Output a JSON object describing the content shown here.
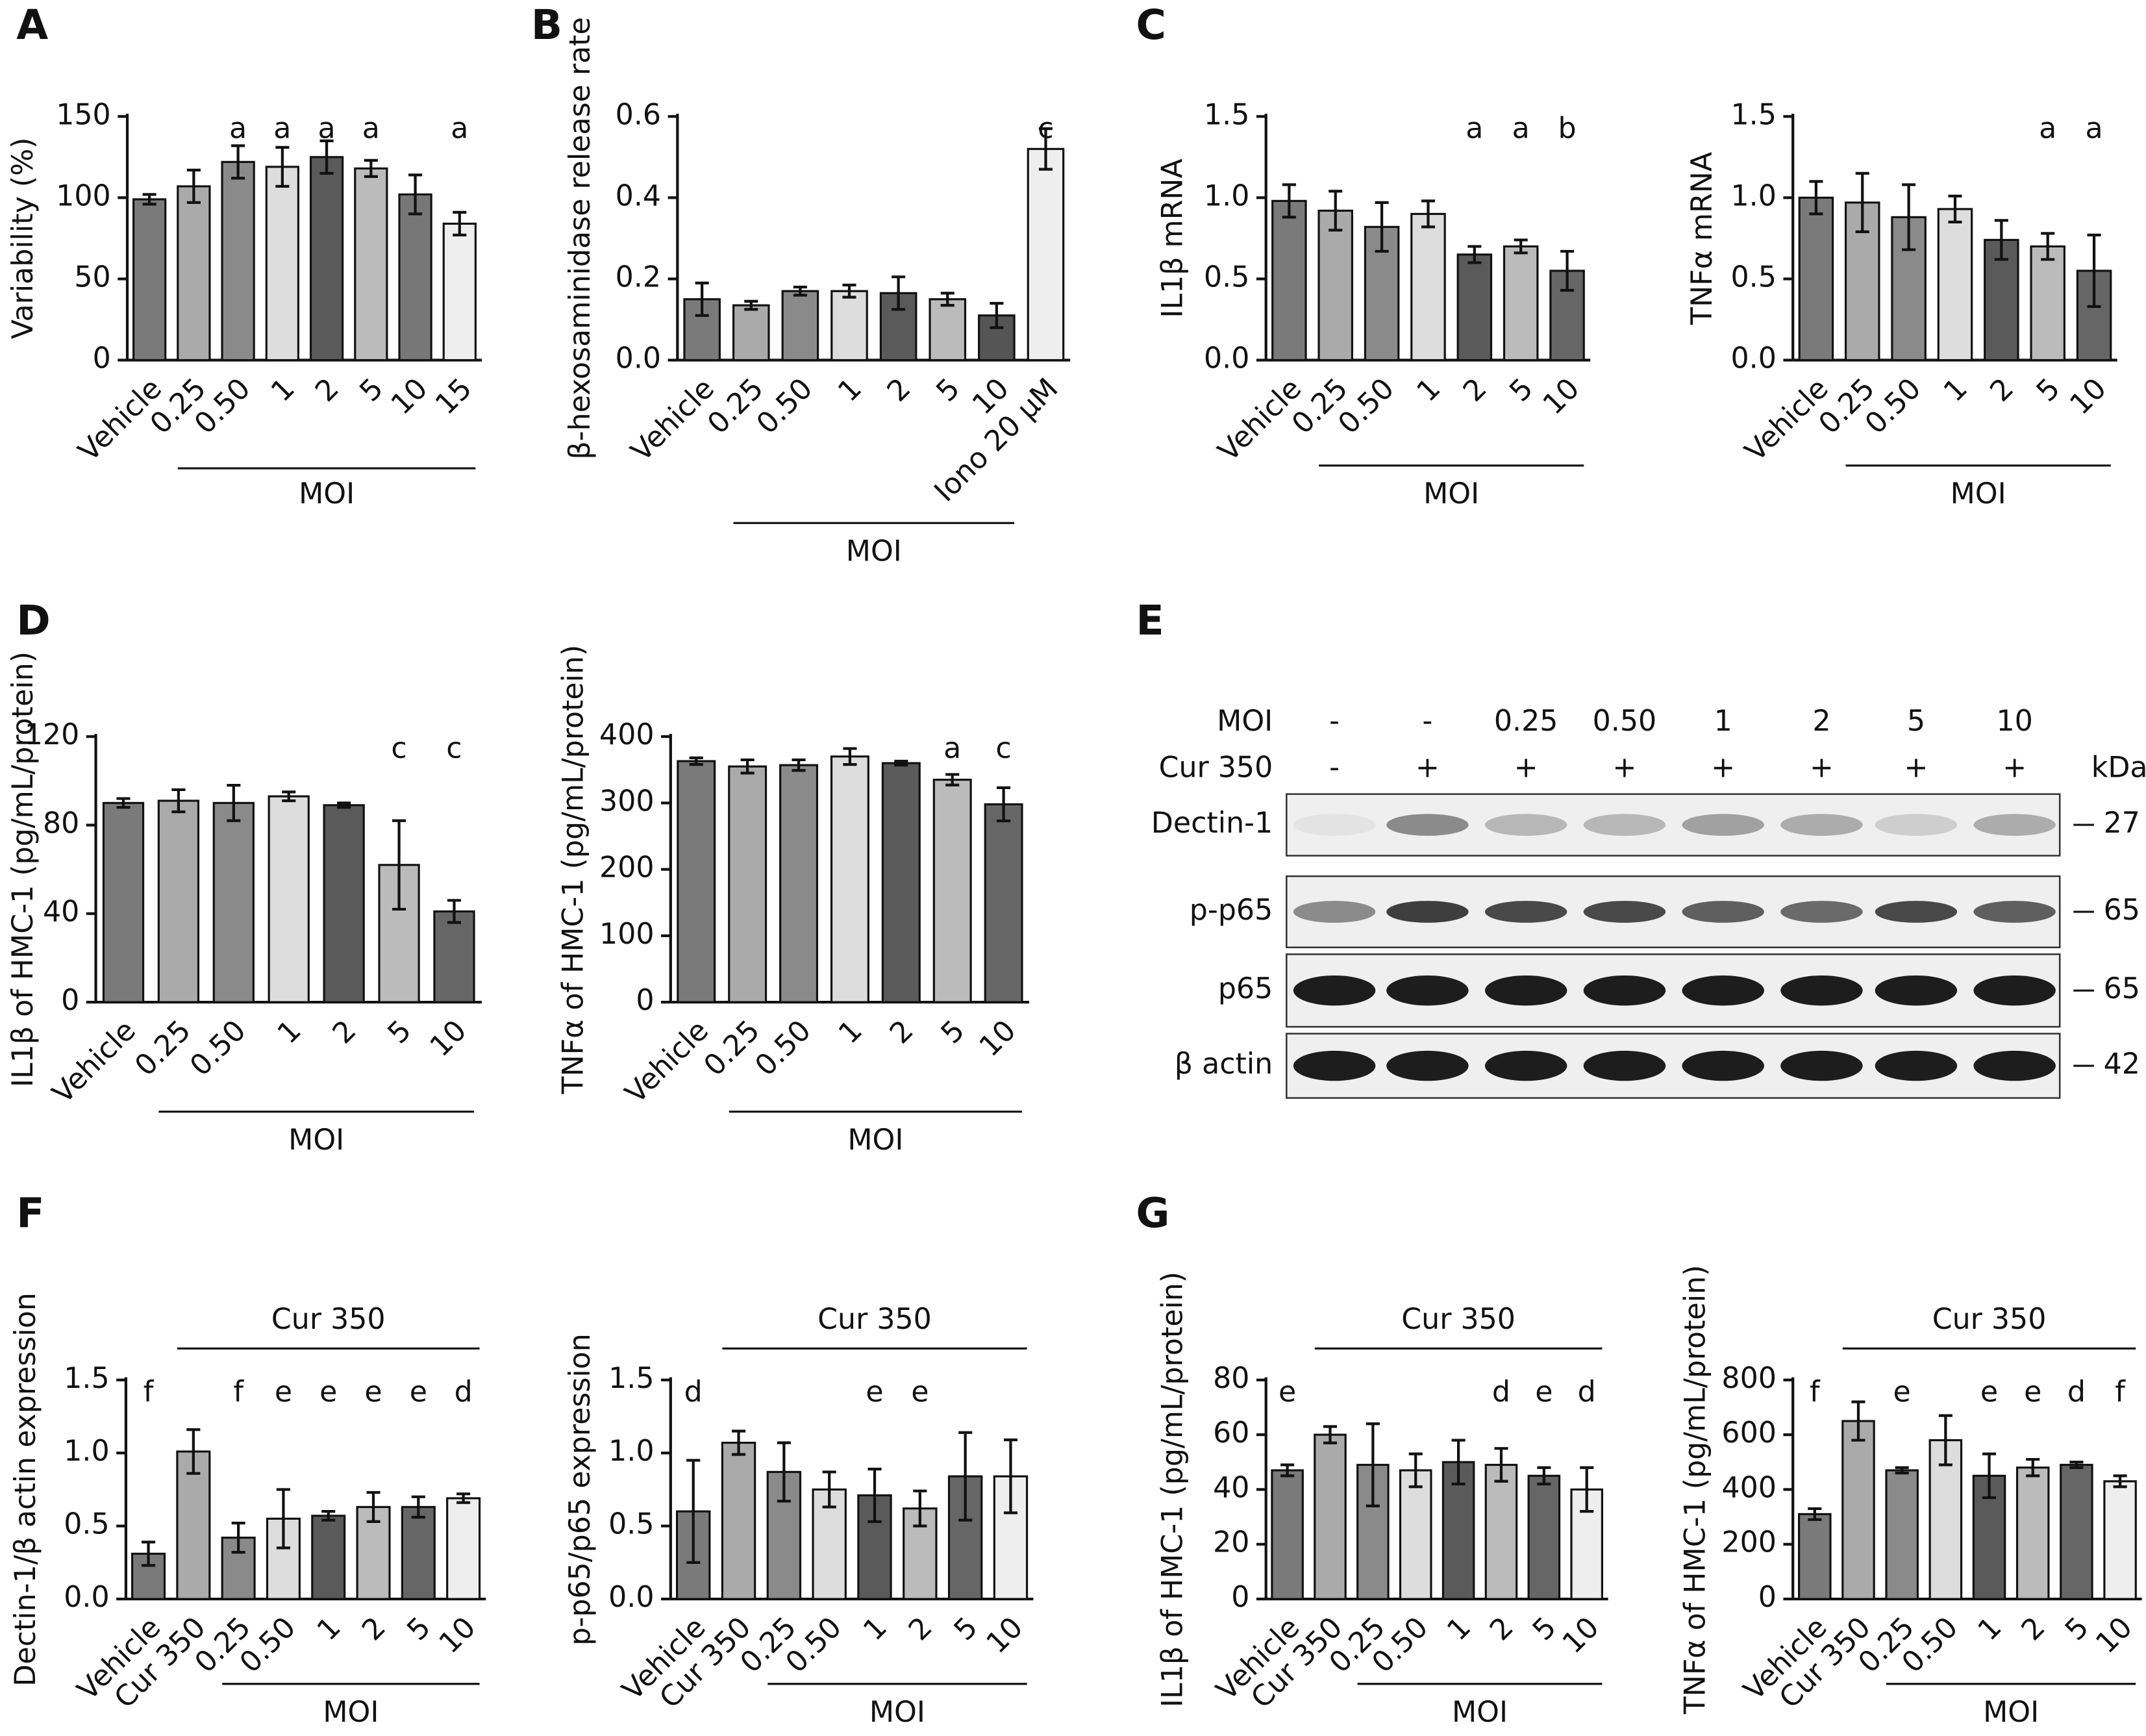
{
  "chart_data": [
    {
      "type": "bar",
      "panel": "A",
      "ylabel": "Variability (%)",
      "categories": [
        "Vehicle",
        "0.25",
        "0.50",
        "1",
        "2",
        "5",
        "10",
        "15"
      ],
      "values": [
        99,
        107,
        122,
        119,
        125,
        118,
        102,
        84
      ],
      "errors": [
        3,
        10,
        10,
        12,
        10,
        5,
        12,
        7
      ],
      "annotations": [
        null,
        null,
        "a",
        "a",
        "a",
        "a",
        null,
        "a"
      ],
      "group_labels": [
        "MOI"
      ],
      "colors": [
        "#7a7a7a",
        "#aaaaaa",
        "#8a8a8a",
        "#dddddd",
        "#5a5a5a",
        "#bbbbbb",
        "#777777",
        "#eeeeee"
      ],
      "ylim": [
        0,
        150
      ],
      "yticks": [
        0,
        50,
        100,
        150
      ]
    },
    {
      "type": "bar",
      "panel": "B",
      "ylabel": "β-hexosaminidase release rate",
      "categories": [
        "Vehicle",
        "0.25",
        "0.50",
        "1",
        "2",
        "5",
        "10",
        "Iono 20 μM"
      ],
      "values": [
        0.15,
        0.135,
        0.17,
        0.17,
        0.165,
        0.15,
        0.11,
        0.52
      ],
      "errors": [
        0.04,
        0.01,
        0.01,
        0.015,
        0.04,
        0.015,
        0.03,
        0.05
      ],
      "annotations": [
        null,
        null,
        null,
        null,
        null,
        null,
        null,
        "c"
      ],
      "group_labels": [
        "MOI"
      ],
      "colors": [
        "#7a7a7a",
        "#aaaaaa",
        "#8a8a8a",
        "#dddddd",
        "#5a5a5a",
        "#bbbbbb",
        "#555555",
        "#eeeeee"
      ],
      "ylim": [
        0,
        0.6
      ],
      "yticks": [
        {
          "value": 0,
          "label": "0.0"
        },
        0.2,
        0.4,
        0.6
      ]
    },
    {
      "type": "bar",
      "panel": "C",
      "ylabel": "IL1β mRNA",
      "categories": [
        "Vehicle",
        "0.25",
        "0.50",
        "1",
        "2",
        "5",
        "10"
      ],
      "values": [
        0.98,
        0.92,
        0.82,
        0.9,
        0.65,
        0.7,
        0.55
      ],
      "errors": [
        0.1,
        0.12,
        0.15,
        0.08,
        0.05,
        0.04,
        0.12
      ],
      "annotations": [
        null,
        null,
        null,
        null,
        "a",
        "a",
        "b"
      ],
      "group_labels": [
        "MOI"
      ],
      "colors": [
        "#7a7a7a",
        "#aaaaaa",
        "#8a8a8a",
        "#dddddd",
        "#5a5a5a",
        "#bbbbbb",
        "#666666"
      ],
      "ylim": [
        0,
        1.5
      ],
      "yticks": [
        {
          "value": 0,
          "label": "0.0"
        },
        0.5,
        {
          "value": 1,
          "label": "1.0"
        },
        1.5
      ]
    },
    {
      "type": "bar",
      "ylabel": "TNFα mRNA",
      "categories": [
        "Vehicle",
        "0.25",
        "0.50",
        "1",
        "2",
        "5",
        "10"
      ],
      "values": [
        1.0,
        0.97,
        0.88,
        0.93,
        0.74,
        0.7,
        0.55
      ],
      "errors": [
        0.1,
        0.18,
        0.2,
        0.08,
        0.12,
        0.08,
        0.22
      ],
      "annotations": [
        null,
        null,
        null,
        null,
        null,
        "a",
        "a"
      ],
      "group_labels": [
        "MOI"
      ],
      "colors": [
        "#7a7a7a",
        "#aaaaaa",
        "#8a8a8a",
        "#dddddd",
        "#5a5a5a",
        "#bbbbbb",
        "#666666"
      ],
      "ylim": [
        0,
        1.5
      ],
      "yticks": [
        {
          "value": 0,
          "label": "0.0"
        },
        0.5,
        {
          "value": 1,
          "label": "1.0"
        },
        1.5
      ]
    },
    {
      "type": "bar",
      "panel": "D",
      "ylabel": "IL1β of HMC-1 (pg/mL/protein)",
      "categories": [
        "Vehicle",
        "0.25",
        "0.50",
        "1",
        "2",
        "5",
        "10"
      ],
      "values": [
        90,
        91,
        90,
        93,
        89,
        62,
        41
      ],
      "errors": [
        2,
        5,
        8,
        2,
        1,
        20,
        5
      ],
      "annotations": [
        null,
        null,
        null,
        null,
        null,
        "c",
        "c"
      ],
      "group_labels": [
        "MOI"
      ],
      "colors": [
        "#7a7a7a",
        "#aaaaaa",
        "#8a8a8a",
        "#dddddd",
        "#5a5a5a",
        "#bbbbbb",
        "#666666"
      ],
      "ylim": [
        0,
        120
      ],
      "yticks": [
        0,
        40,
        80,
        120
      ]
    },
    {
      "type": "bar",
      "ylabel": "TNFα of HMC-1 (pg/mL/protein)",
      "categories": [
        "Vehicle",
        "0.25",
        "0.50",
        "1",
        "2",
        "5",
        "10"
      ],
      "values": [
        363,
        355,
        357,
        370,
        360,
        335,
        298
      ],
      "errors": [
        5,
        10,
        8,
        12,
        3,
        8,
        25
      ],
      "annotations": [
        null,
        null,
        null,
        null,
        null,
        "a",
        "c"
      ],
      "group_labels": [
        "MOI"
      ],
      "colors": [
        "#7a7a7a",
        "#aaaaaa",
        "#8a8a8a",
        "#dddddd",
        "#5a5a5a",
        "#bbbbbb",
        "#666666"
      ],
      "ylim": [
        0,
        400
      ],
      "yticks": [
        0,
        100,
        200,
        300,
        400
      ]
    },
    {
      "type": "bar",
      "panel": "F",
      "ylabel": "Dectin-1/β actin expression",
      "categories": [
        "Vehicle",
        "Cur 350",
        "0.25",
        "0.50",
        "1",
        "2",
        "5",
        "10"
      ],
      "values": [
        0.31,
        1.01,
        0.42,
        0.55,
        0.57,
        0.63,
        0.63,
        0.69
      ],
      "errors": [
        0.08,
        0.15,
        0.1,
        0.2,
        0.03,
        0.1,
        0.07,
        0.03
      ],
      "annotations": [
        "f",
        null,
        "f",
        "e",
        "e",
        "e",
        "e",
        "d"
      ],
      "group_labels": [
        "Cur 350",
        "MOI"
      ],
      "colors": [
        "#7a7a7a",
        "#aaaaaa",
        "#8a8a8a",
        "#dddddd",
        "#5a5a5a",
        "#bbbbbb",
        "#666666",
        "#eeeeee"
      ],
      "ylim": [
        0,
        1.5
      ],
      "yticks": [
        {
          "value": 0,
          "label": "0.0"
        },
        0.5,
        {
          "value": 1,
          "label": "1.0"
        },
        1.5
      ]
    },
    {
      "type": "bar",
      "ylabel": "p-p65/p65 expression",
      "categories": [
        "Vehicle",
        "Cur 350",
        "0.25",
        "0.50",
        "1",
        "2",
        "5",
        "10"
      ],
      "values": [
        0.6,
        1.07,
        0.87,
        0.75,
        0.71,
        0.62,
        0.84,
        0.84
      ],
      "errors": [
        0.35,
        0.08,
        0.2,
        0.12,
        0.18,
        0.12,
        0.3,
        0.25
      ],
      "annotations": [
        "d",
        null,
        null,
        null,
        "e",
        "e",
        null,
        null
      ],
      "group_labels": [
        "Cur 350",
        "MOI"
      ],
      "colors": [
        "#7a7a7a",
        "#aaaaaa",
        "#8a8a8a",
        "#dddddd",
        "#5a5a5a",
        "#bbbbbb",
        "#666666",
        "#eeeeee"
      ],
      "ylim": [
        0,
        1.5
      ],
      "yticks": [
        {
          "value": 0,
          "label": "0.0"
        },
        0.5,
        {
          "value": 1,
          "label": "1.0"
        },
        1.5
      ]
    },
    {
      "type": "bar",
      "panel": "G",
      "ylabel": "IL1β of HMC-1 (pg/mL/protein)",
      "categories": [
        "Vehicle",
        "Cur 350",
        "0.25",
        "0.50",
        "1",
        "2",
        "5",
        "10"
      ],
      "values": [
        47,
        60,
        49,
        47,
        50,
        49,
        45,
        40
      ],
      "errors": [
        2,
        3,
        15,
        6,
        8,
        6,
        3,
        8
      ],
      "annotations": [
        "e",
        null,
        null,
        null,
        null,
        "d",
        "e",
        "d"
      ],
      "group_labels": [
        "Cur 350",
        "MOI"
      ],
      "colors": [
        "#7a7a7a",
        "#aaaaaa",
        "#8a8a8a",
        "#dddddd",
        "#5a5a5a",
        "#bbbbbb",
        "#666666",
        "#eeeeee"
      ],
      "ylim": [
        0,
        80
      ],
      "yticks": [
        0,
        20,
        40,
        60,
        80
      ]
    },
    {
      "type": "bar",
      "ylabel": "TNFα of HMC-1 (pg/mL/protein)",
      "categories": [
        "Vehicle",
        "Cur 350",
        "0.25",
        "0.50",
        "1",
        "2",
        "5",
        "10"
      ],
      "values": [
        310,
        650,
        470,
        580,
        450,
        480,
        490,
        430
      ],
      "errors": [
        20,
        70,
        10,
        90,
        80,
        30,
        10,
        20
      ],
      "annotations": [
        "f",
        null,
        "e",
        null,
        "e",
        "e",
        "d",
        "f"
      ],
      "group_labels": [
        "Cur 350",
        "MOI"
      ],
      "colors": [
        "#7a7a7a",
        "#aaaaaa",
        "#8a8a8a",
        "#dddddd",
        "#5a5a5a",
        "#bbbbbb",
        "#666666",
        "#eeeeee"
      ],
      "ylim": [
        0,
        800
      ],
      "yticks": [
        0,
        200,
        400,
        600,
        800
      ]
    }
  ],
  "blot": {
    "panel": "E",
    "header_labels": [
      "MOI",
      "Cur 350"
    ],
    "moi": [
      "-",
      "-",
      "0.25",
      "0.50",
      "1",
      "2",
      "5",
      "10"
    ],
    "cur": [
      "-",
      "+",
      "+",
      "+",
      "+",
      "+",
      "+",
      "+"
    ],
    "unit": "kDa",
    "rows": [
      {
        "label": "Dectin-1",
        "kda": 27
      },
      {
        "label": "p-p65",
        "kda": 65
      },
      {
        "label": "p65",
        "kda": 65
      },
      {
        "label": "β actin",
        "kda": 42
      }
    ]
  }
}
